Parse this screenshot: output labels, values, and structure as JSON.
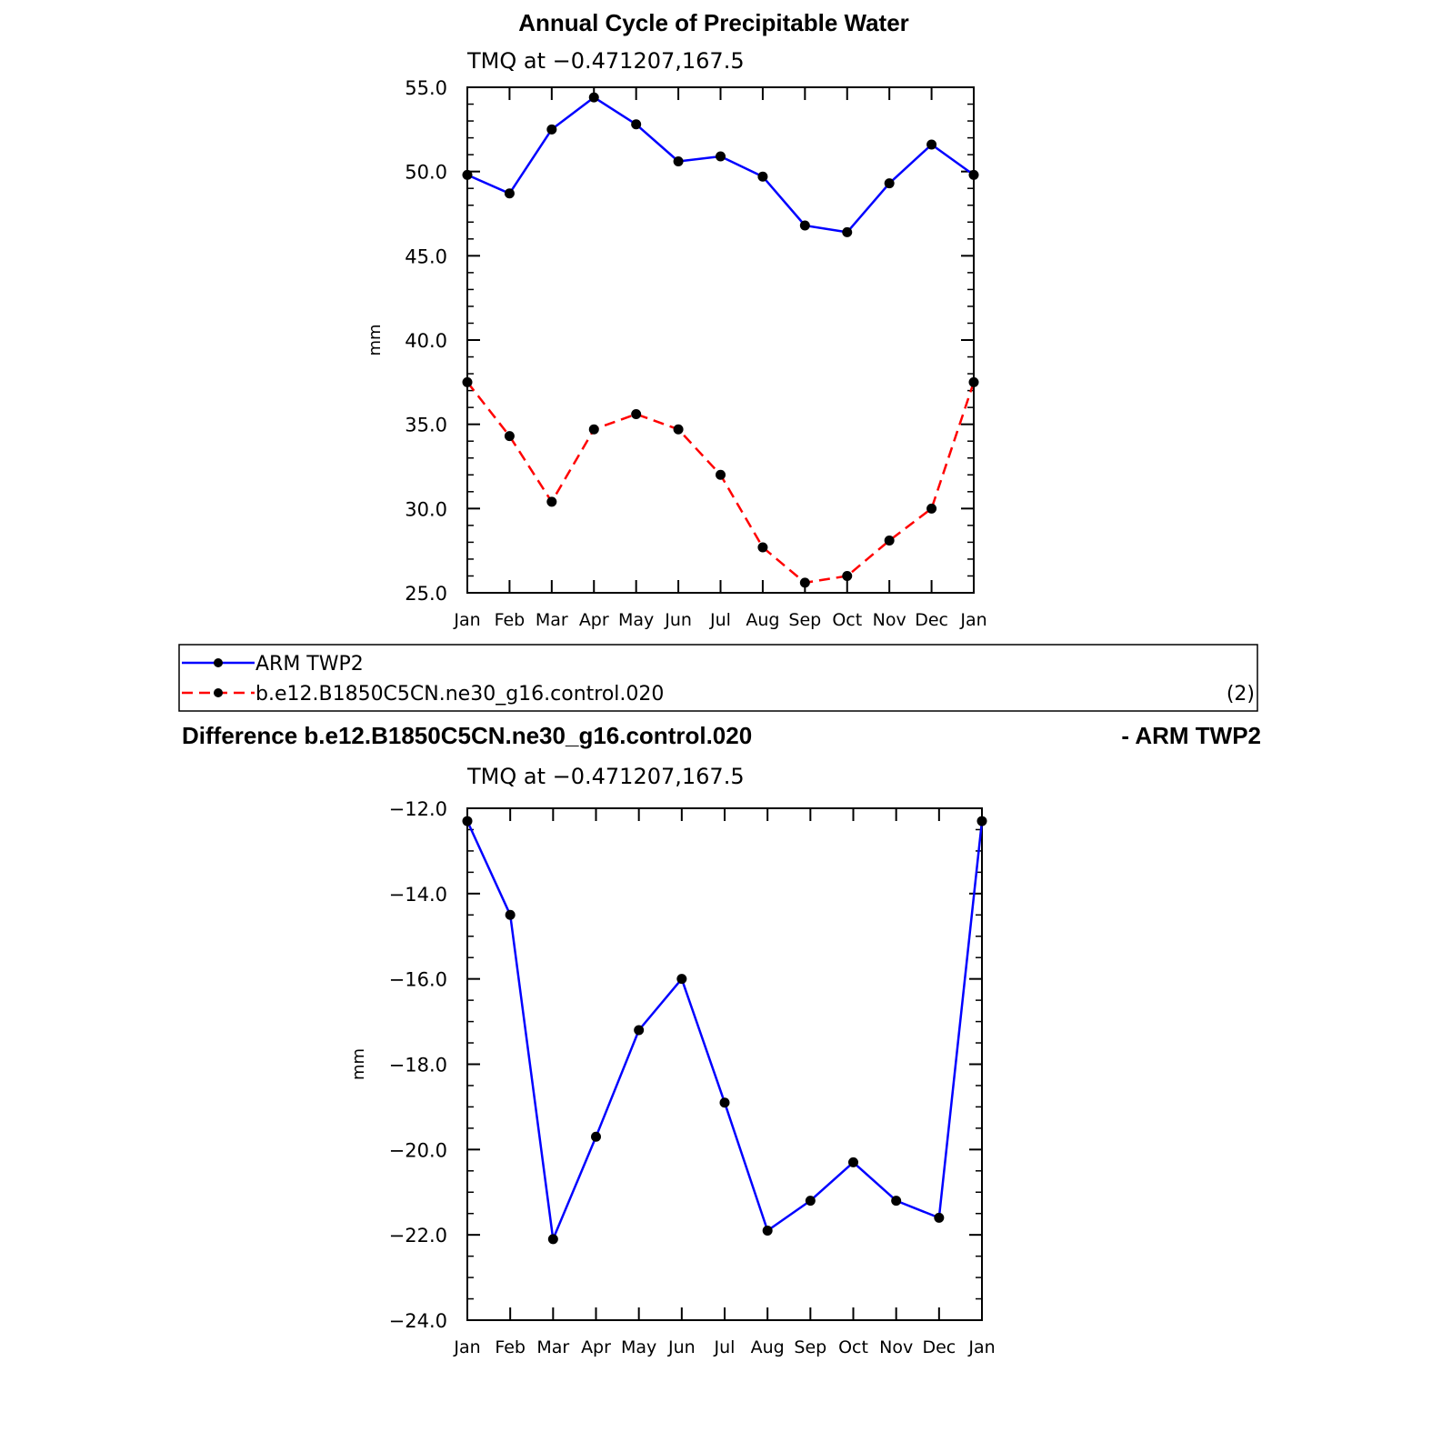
{
  "top_title": "Annual Cycle of Precipitable Water",
  "legend": {
    "entries": [
      {
        "label": "ARM TWP2",
        "color": "#0000ff",
        "dash": false
      },
      {
        "label": "b.e12.B1850C5CN.ne30_g16.control.020",
        "color": "#ff0000",
        "dash": true
      }
    ],
    "count_label": "(2)"
  },
  "diff_title_left": "Difference b.e12.B1850C5CN.ne30_g16.control.020",
  "diff_title_right": "- ARM TWP2",
  "chart_data": [
    {
      "type": "line",
      "title": "Annual Cycle of Precipitable Water",
      "subtitle": "TMQ  at  −0.471207,167.5",
      "ylabel": "mm",
      "categories": [
        "Jan",
        "Feb",
        "Mar",
        "Apr",
        "May",
        "Jun",
        "Jul",
        "Aug",
        "Sep",
        "Oct",
        "Nov",
        "Dec",
        "Jan"
      ],
      "ylim": [
        25,
        55
      ],
      "yticks": [
        25,
        30,
        35,
        40,
        45,
        50,
        55
      ],
      "ytick_labels": [
        "25.0",
        "30.0",
        "35.0",
        "40.0",
        "45.0",
        "50.0",
        "55.0"
      ],
      "series": [
        {
          "name": "ARM TWP2",
          "color": "#0000ff",
          "dash": false,
          "values": [
            49.8,
            48.7,
            52.5,
            54.4,
            52.8,
            50.6,
            50.9,
            49.7,
            46.8,
            46.4,
            49.3,
            51.6,
            49.8
          ]
        },
        {
          "name": "b.e12.B1850C5CN.ne30_g16.control.020",
          "color": "#ff0000",
          "dash": true,
          "values": [
            37.5,
            34.3,
            30.4,
            34.7,
            35.6,
            34.7,
            32.0,
            27.7,
            25.6,
            26.0,
            28.1,
            30.0,
            37.5
          ]
        }
      ],
      "grid": false
    },
    {
      "type": "line",
      "title": "Difference b.e12.B1850C5CN.ne30_g16.control.020 - ARM TWP2",
      "subtitle": "TMQ  at  −0.471207,167.5",
      "ylabel": "mm",
      "categories": [
        "Jan",
        "Feb",
        "Mar",
        "Apr",
        "May",
        "Jun",
        "Jul",
        "Aug",
        "Sep",
        "Oct",
        "Nov",
        "Dec",
        "Jan"
      ],
      "ylim": [
        -24,
        -12
      ],
      "yticks": [
        -24,
        -22,
        -20,
        -18,
        -16,
        -14,
        -12
      ],
      "ytick_labels": [
        "−24.0",
        "−22.0",
        "−20.0",
        "−18.0",
        "−16.0",
        "−14.0",
        "−12.0"
      ],
      "series": [
        {
          "color": "#0000ff",
          "dash": false,
          "values": [
            -12.3,
            -14.5,
            -22.1,
            -19.7,
            -17.2,
            -16.0,
            -18.9,
            -21.9,
            -21.2,
            -20.3,
            -21.2,
            -21.6,
            -12.3
          ]
        }
      ],
      "grid": false
    }
  ]
}
